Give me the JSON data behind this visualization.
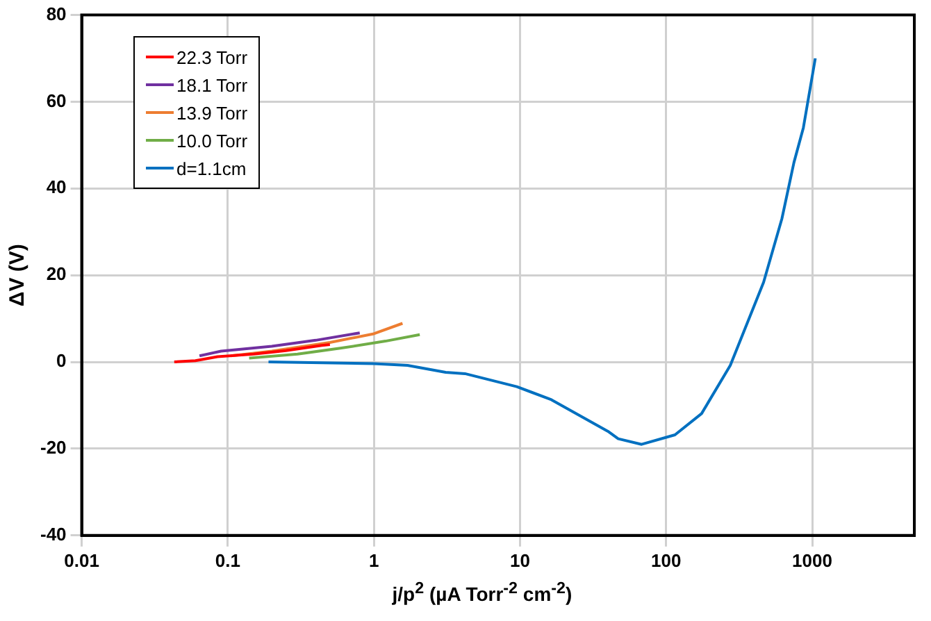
{
  "chart_data": {
    "type": "line",
    "xlabel": "j/p$^{2}$ (µA Torr$^{-2}$ cm$^{-2}$)",
    "ylabel": "ΔV (V)",
    "log": "x",
    "grid": true,
    "legend": "top left",
    "marker": "none",
    "line_style": "solid",
    "xlim": [
      0.01,
      5000
    ],
    "xticks": [
      0.01,
      0.1,
      1,
      10,
      100,
      1000
    ],
    "ylim": [
      -40,
      80
    ],
    "yticks": [
      -40,
      -20,
      0,
      20,
      40,
      60,
      80
    ],
    "series": [
      {
        "name": "22.3 Torr",
        "color": "#ff0000",
        "x": [
          0.043,
          0.06,
          0.085,
          0.15,
          0.25,
          0.44,
          0.5
        ],
        "values": [
          0,
          0.3,
          1.2,
          1.8,
          2.6,
          3.8,
          4
        ]
      },
      {
        "name": "18.1 Torr",
        "color": "#7030a0",
        "x": [
          0.064,
          0.09,
          0.2,
          0.4,
          0.8
        ],
        "values": [
          1.4,
          2.5,
          3.6,
          5,
          6.7
        ]
      },
      {
        "name": "13.9 Torr",
        "color": "#ed7d31",
        "x": [
          0.105,
          0.2,
          0.5,
          1,
          1.57
        ],
        "values": [
          1.4,
          2.5,
          4.5,
          6.5,
          8.9
        ]
      },
      {
        "name": "10.0 Torr",
        "color": "#70ad47",
        "x": [
          0.14,
          0.3,
          0.6,
          1.2,
          2.06
        ],
        "values": [
          0.9,
          1.8,
          3.2,
          4.8,
          6.3
        ]
      },
      {
        "name": "d=1.1cm",
        "color": "#0070c0",
        "x": [
          0.19,
          1,
          1.7,
          3.1,
          4.2,
          9.5,
          16.4,
          40,
          47,
          68,
          115,
          175,
          275,
          465,
          620,
          750,
          870,
          1050
        ],
        "values": [
          0,
          -0.4,
          -0.8,
          -2.4,
          -2.7,
          -5.7,
          -8.7,
          -16,
          -17.7,
          -19,
          -16.8,
          -11.9,
          -0.8,
          18.4,
          33,
          46,
          54,
          70
        ]
      }
    ]
  }
}
